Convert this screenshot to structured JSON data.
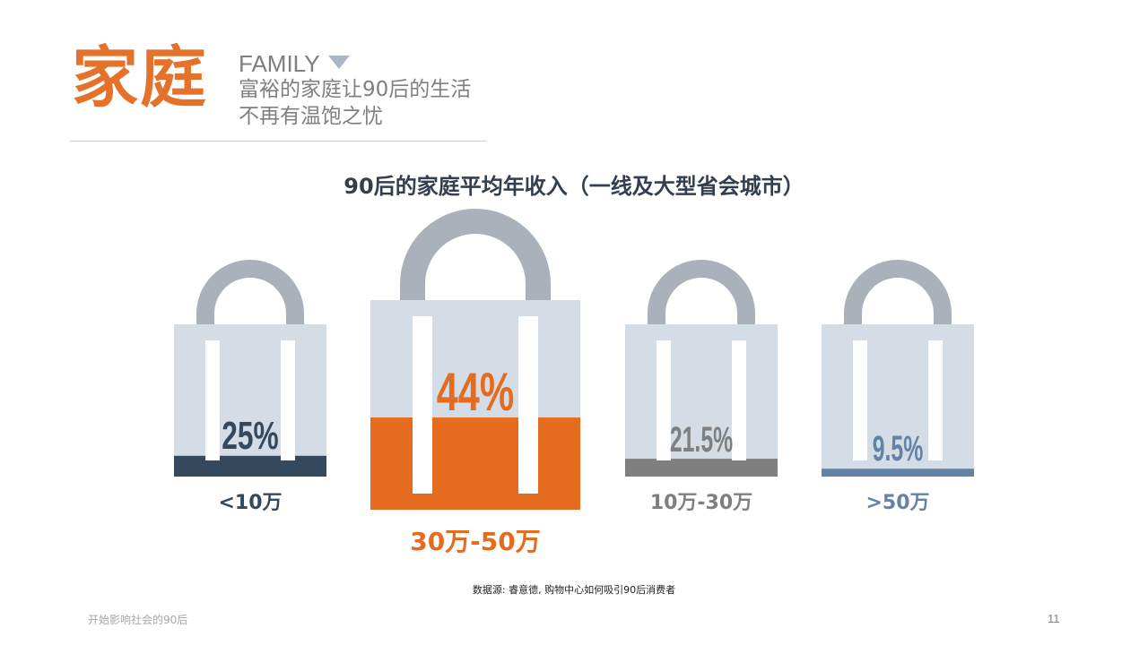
{
  "header": {
    "title": "家庭",
    "title_color": "#e5722a",
    "subtitle_en": "FAMILY",
    "subtitle_lines": [
      "富裕的家庭让90后的生活",
      "不再有温饱之忧"
    ]
  },
  "colors": {
    "bag_body": "#d4dde6",
    "handle": "#aab1ba",
    "strap": "#ffffff"
  },
  "chart_data": {
    "type": "bar",
    "title": "90后的家庭平均年收入（一线及大型省会城市）",
    "categories": [
      "<10万",
      "30万-50万",
      "10万-30万",
      ">50万"
    ],
    "values": [
      25,
      44,
      21.5,
      9.5
    ],
    "value_labels": [
      "25%",
      "44%",
      "21.5%",
      "9.5%"
    ],
    "unit": "%",
    "ylim": [
      0,
      100
    ],
    "series_colors": [
      "#34495e",
      "#e56b1f",
      "#7f7f7f",
      "#6283a6"
    ],
    "label_colors": [
      "#34495e",
      "#e56b1f",
      "#7f7f7f",
      "#6283a6"
    ],
    "highlight_index": 1
  },
  "source": "数据源: 睿意德, 购物中心如何吸引90后消费者",
  "footer": {
    "text": "开始影响社会的90后",
    "page": "11"
  }
}
